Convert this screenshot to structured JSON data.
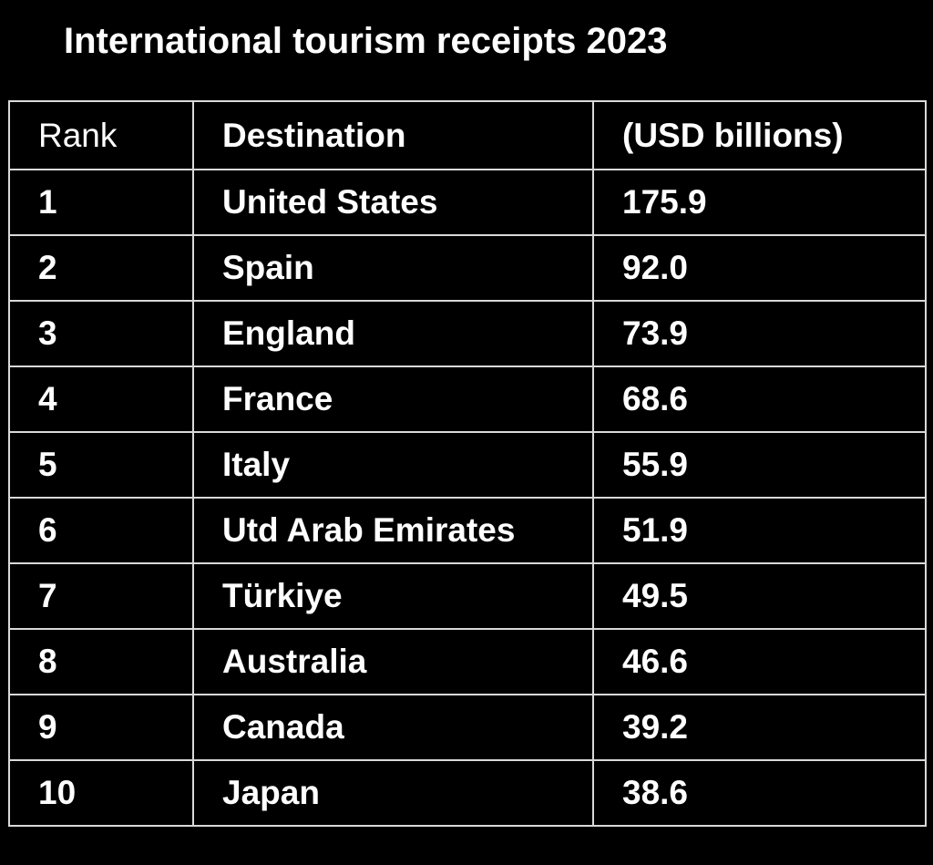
{
  "chart_data": {
    "type": "table",
    "title": "International tourism receipts 2023",
    "columns": [
      "Rank",
      "Destination",
      "(USD billions)"
    ],
    "rows": [
      {
        "rank": "1",
        "destination": "United States",
        "value": "175.9"
      },
      {
        "rank": "2",
        "destination": "Spain",
        "value": "92.0"
      },
      {
        "rank": "3",
        "destination": "England",
        "value": "73.9"
      },
      {
        "rank": "4",
        "destination": "France",
        "value": "68.6"
      },
      {
        "rank": "5",
        "destination": "Italy",
        "value": "55.9"
      },
      {
        "rank": "6",
        "destination": "Utd Arab Emirates",
        "value": "51.9"
      },
      {
        "rank": "7",
        "destination": "Türkiye",
        "value": "49.5"
      },
      {
        "rank": "8",
        "destination": "Australia",
        "value": "46.6"
      },
      {
        "rank": "9",
        "destination": "Canada",
        "value": "39.2"
      },
      {
        "rank": "10",
        "destination": "Japan",
        "value": "38.6"
      }
    ]
  },
  "colors": {
    "background": "#000000",
    "text": "#ffffff",
    "grid": "#d9d9d9"
  }
}
